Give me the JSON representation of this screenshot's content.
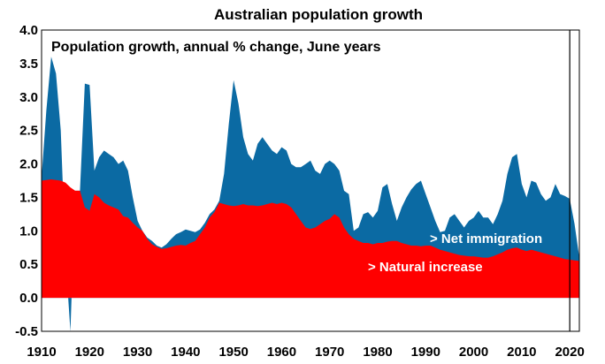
{
  "chart_data": {
    "type": "area",
    "title": "Australian population growth",
    "subtitle": "Population growth, annual % change, June years",
    "xlabel": "",
    "ylabel": "",
    "xlim": [
      1910,
      2022
    ],
    "ylim": [
      -0.5,
      4.0
    ],
    "yticks": [
      -0.5,
      0.0,
      0.5,
      1.0,
      1.5,
      2.0,
      2.5,
      3.0,
      3.5,
      4.0
    ],
    "xticks": [
      1910,
      1920,
      1930,
      1940,
      1950,
      1960,
      1970,
      1980,
      1990,
      2000,
      2010,
      2020
    ],
    "reference_line_x": 2020,
    "series": [
      {
        "name": "Net immigration",
        "kind": "total_population_growth",
        "color": "#0b6aa3",
        "label_text": "> Net immigration",
        "points": [
          [
            1910,
            1.8
          ],
          [
            1911,
            2.8
          ],
          [
            1912,
            3.6
          ],
          [
            1913,
            3.35
          ],
          [
            1914,
            2.5
          ],
          [
            1915,
            0.6
          ],
          [
            1916,
            -0.5
          ],
          [
            1917,
            1.6
          ],
          [
            1918,
            1.6
          ],
          [
            1919,
            3.2
          ],
          [
            1920,
            3.18
          ],
          [
            1921,
            1.9
          ],
          [
            1922,
            2.1
          ],
          [
            1923,
            2.2
          ],
          [
            1924,
            2.15
          ],
          [
            1925,
            2.1
          ],
          [
            1926,
            2.0
          ],
          [
            1927,
            2.05
          ],
          [
            1928,
            1.9
          ],
          [
            1929,
            1.5
          ],
          [
            1930,
            1.15
          ],
          [
            1931,
            1.0
          ],
          [
            1932,
            0.9
          ],
          [
            1933,
            0.85
          ],
          [
            1934,
            0.78
          ],
          [
            1935,
            0.75
          ],
          [
            1936,
            0.8
          ],
          [
            1937,
            0.88
          ],
          [
            1938,
            0.95
          ],
          [
            1939,
            0.98
          ],
          [
            1940,
            1.02
          ],
          [
            1941,
            1.0
          ],
          [
            1942,
            0.98
          ],
          [
            1943,
            1.02
          ],
          [
            1944,
            1.12
          ],
          [
            1945,
            1.25
          ],
          [
            1946,
            1.32
          ],
          [
            1947,
            1.45
          ],
          [
            1948,
            1.85
          ],
          [
            1949,
            2.6
          ],
          [
            1950,
            3.25
          ],
          [
            1951,
            2.9
          ],
          [
            1952,
            2.4
          ],
          [
            1953,
            2.15
          ],
          [
            1954,
            2.05
          ],
          [
            1955,
            2.3
          ],
          [
            1956,
            2.4
          ],
          [
            1957,
            2.3
          ],
          [
            1958,
            2.2
          ],
          [
            1959,
            2.15
          ],
          [
            1960,
            2.25
          ],
          [
            1961,
            2.2
          ],
          [
            1962,
            2.0
          ],
          [
            1963,
            1.95
          ],
          [
            1964,
            1.95
          ],
          [
            1965,
            2.0
          ],
          [
            1966,
            2.05
          ],
          [
            1967,
            1.9
          ],
          [
            1968,
            1.85
          ],
          [
            1969,
            2.0
          ],
          [
            1970,
            2.05
          ],
          [
            1971,
            2.0
          ],
          [
            1972,
            1.9
          ],
          [
            1973,
            1.6
          ],
          [
            1974,
            1.55
          ],
          [
            1975,
            1.0
          ],
          [
            1976,
            1.05
          ],
          [
            1977,
            1.25
          ],
          [
            1978,
            1.28
          ],
          [
            1979,
            1.2
          ],
          [
            1980,
            1.3
          ],
          [
            1981,
            1.65
          ],
          [
            1982,
            1.7
          ],
          [
            1983,
            1.4
          ],
          [
            1984,
            1.15
          ],
          [
            1985,
            1.35
          ],
          [
            1986,
            1.5
          ],
          [
            1987,
            1.62
          ],
          [
            1988,
            1.7
          ],
          [
            1989,
            1.75
          ],
          [
            1990,
            1.55
          ],
          [
            1991,
            1.35
          ],
          [
            1992,
            1.15
          ],
          [
            1993,
            0.98
          ],
          [
            1994,
            1.0
          ],
          [
            1995,
            1.2
          ],
          [
            1996,
            1.25
          ],
          [
            1997,
            1.15
          ],
          [
            1998,
            1.05
          ],
          [
            1999,
            1.15
          ],
          [
            2000,
            1.2
          ],
          [
            2001,
            1.3
          ],
          [
            2002,
            1.2
          ],
          [
            2003,
            1.2
          ],
          [
            2004,
            1.1
          ],
          [
            2005,
            1.25
          ],
          [
            2006,
            1.45
          ],
          [
            2007,
            1.85
          ],
          [
            2008,
            2.1
          ],
          [
            2009,
            2.15
          ],
          [
            2010,
            1.7
          ],
          [
            2011,
            1.5
          ],
          [
            2012,
            1.75
          ],
          [
            2013,
            1.72
          ],
          [
            2014,
            1.55
          ],
          [
            2015,
            1.45
          ],
          [
            2016,
            1.5
          ],
          [
            2017,
            1.7
          ],
          [
            2018,
            1.55
          ],
          [
            2019,
            1.52
          ],
          [
            2020,
            1.48
          ],
          [
            2021,
            1.1
          ],
          [
            2022,
            0.6
          ]
        ]
      },
      {
        "name": "Natural increase",
        "kind": "natural_increase",
        "color": "#ff0000",
        "label_text": "> Natural increase",
        "points": [
          [
            1910,
            1.75
          ],
          [
            1911,
            1.76
          ],
          [
            1912,
            1.77
          ],
          [
            1913,
            1.76
          ],
          [
            1914,
            1.75
          ],
          [
            1915,
            1.72
          ],
          [
            1916,
            1.65
          ],
          [
            1917,
            1.6
          ],
          [
            1918,
            1.6
          ],
          [
            1919,
            1.35
          ],
          [
            1920,
            1.3
          ],
          [
            1921,
            1.55
          ],
          [
            1922,
            1.5
          ],
          [
            1923,
            1.42
          ],
          [
            1924,
            1.38
          ],
          [
            1925,
            1.35
          ],
          [
            1926,
            1.32
          ],
          [
            1927,
            1.22
          ],
          [
            1928,
            1.2
          ],
          [
            1929,
            1.12
          ],
          [
            1930,
            1.05
          ],
          [
            1931,
            1.0
          ],
          [
            1932,
            0.88
          ],
          [
            1933,
            0.8
          ],
          [
            1934,
            0.76
          ],
          [
            1935,
            0.73
          ],
          [
            1936,
            0.74
          ],
          [
            1937,
            0.76
          ],
          [
            1938,
            0.78
          ],
          [
            1939,
            0.79
          ],
          [
            1940,
            0.78
          ],
          [
            1941,
            0.82
          ],
          [
            1942,
            0.85
          ],
          [
            1943,
            0.95
          ],
          [
            1944,
            1.05
          ],
          [
            1945,
            1.2
          ],
          [
            1946,
            1.28
          ],
          [
            1947,
            1.42
          ],
          [
            1948,
            1.4
          ],
          [
            1949,
            1.38
          ],
          [
            1950,
            1.37
          ],
          [
            1951,
            1.38
          ],
          [
            1952,
            1.4
          ],
          [
            1953,
            1.38
          ],
          [
            1954,
            1.38
          ],
          [
            1955,
            1.37
          ],
          [
            1956,
            1.38
          ],
          [
            1957,
            1.4
          ],
          [
            1958,
            1.42
          ],
          [
            1959,
            1.4
          ],
          [
            1960,
            1.42
          ],
          [
            1961,
            1.4
          ],
          [
            1962,
            1.35
          ],
          [
            1963,
            1.25
          ],
          [
            1964,
            1.15
          ],
          [
            1965,
            1.05
          ],
          [
            1966,
            1.03
          ],
          [
            1967,
            1.05
          ],
          [
            1968,
            1.1
          ],
          [
            1969,
            1.15
          ],
          [
            1970,
            1.18
          ],
          [
            1971,
            1.25
          ],
          [
            1972,
            1.2
          ],
          [
            1973,
            1.05
          ],
          [
            1974,
            0.95
          ],
          [
            1975,
            0.88
          ],
          [
            1976,
            0.85
          ],
          [
            1977,
            0.82
          ],
          [
            1978,
            0.82
          ],
          [
            1979,
            0.8
          ],
          [
            1980,
            0.82
          ],
          [
            1981,
            0.82
          ],
          [
            1982,
            0.84
          ],
          [
            1983,
            0.85
          ],
          [
            1984,
            0.85
          ],
          [
            1985,
            0.82
          ],
          [
            1986,
            0.8
          ],
          [
            1987,
            0.78
          ],
          [
            1988,
            0.78
          ],
          [
            1989,
            0.77
          ],
          [
            1990,
            0.78
          ],
          [
            1991,
            0.78
          ],
          [
            1992,
            0.75
          ],
          [
            1993,
            0.72
          ],
          [
            1994,
            0.7
          ],
          [
            1995,
            0.68
          ],
          [
            1996,
            0.66
          ],
          [
            1997,
            0.64
          ],
          [
            1998,
            0.63
          ],
          [
            1999,
            0.62
          ],
          [
            2000,
            0.62
          ],
          [
            2001,
            0.61
          ],
          [
            2002,
            0.6
          ],
          [
            2003,
            0.6
          ],
          [
            2004,
            0.62
          ],
          [
            2005,
            0.65
          ],
          [
            2006,
            0.68
          ],
          [
            2007,
            0.72
          ],
          [
            2008,
            0.74
          ],
          [
            2009,
            0.75
          ],
          [
            2010,
            0.72
          ],
          [
            2011,
            0.7
          ],
          [
            2012,
            0.72
          ],
          [
            2013,
            0.7
          ],
          [
            2014,
            0.68
          ],
          [
            2015,
            0.66
          ],
          [
            2016,
            0.64
          ],
          [
            2017,
            0.62
          ],
          [
            2018,
            0.6
          ],
          [
            2019,
            0.58
          ],
          [
            2020,
            0.57
          ],
          [
            2021,
            0.56
          ],
          [
            2022,
            0.55
          ]
        ]
      }
    ],
    "legend": "inline-labels"
  }
}
